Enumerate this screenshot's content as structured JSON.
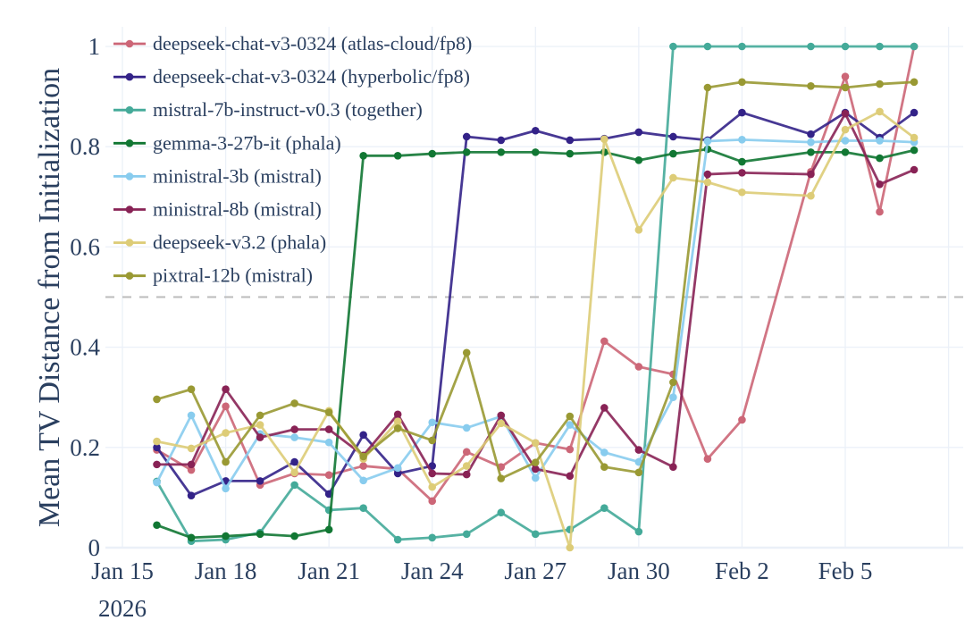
{
  "chart_data": {
    "type": "line",
    "title": "",
    "xlabel": "",
    "ylabel": "Mean TV Distance from Initialization",
    "ylim": [
      0,
      1.02
    ],
    "xlim": [
      "2026-01-15",
      "2026-02-08"
    ],
    "grid": true,
    "legend_position": "top-left",
    "x_ticks": [
      {
        "date": "2026-01-15",
        "label": "Jan 15",
        "sublabel": "2026"
      },
      {
        "date": "2026-01-18",
        "label": "Jan 18"
      },
      {
        "date": "2026-01-21",
        "label": "Jan 21"
      },
      {
        "date": "2026-01-24",
        "label": "Jan 24"
      },
      {
        "date": "2026-01-27",
        "label": "Jan 27"
      },
      {
        "date": "2026-01-30",
        "label": "Jan 30"
      },
      {
        "date": "2026-02-02",
        "label": "Feb 2"
      },
      {
        "date": "2026-02-05",
        "label": "Feb 5"
      },
      {
        "date": "2026-02-08",
        "label": ""
      }
    ],
    "y_ticks": [
      {
        "value": 0,
        "label": "0"
      },
      {
        "value": 0.2,
        "label": "0.2"
      },
      {
        "value": 0.4,
        "label": "0.4"
      },
      {
        "value": 0.6,
        "label": "0.6"
      },
      {
        "value": 0.8,
        "label": "0.8"
      },
      {
        "value": 1,
        "label": "1"
      }
    ],
    "reference_line": {
      "y": 0.5,
      "style": "dashed",
      "color": "#bbbbbb"
    },
    "x": [
      "2026-01-16",
      "2026-01-17",
      "2026-01-18",
      "2026-01-19",
      "2026-01-20",
      "2026-01-21",
      "2026-01-22",
      "2026-01-23",
      "2026-01-24",
      "2026-01-25",
      "2026-01-26",
      "2026-01-27",
      "2026-01-28",
      "2026-01-29",
      "2026-01-30",
      "2026-01-31",
      "2026-02-01",
      "2026-02-02",
      "2026-02-04",
      "2026-02-05",
      "2026-02-06",
      "2026-02-07"
    ],
    "series": [
      {
        "name": "deepseek-chat-v3-0324 (atlas-cloud/fp8)",
        "color": "#CC6677",
        "values": [
          0.195,
          0.155,
          0.282,
          0.125,
          0.148,
          0.145,
          0.163,
          0.157,
          0.093,
          0.191,
          0.161,
          0.209,
          0.196,
          0.412,
          0.361,
          0.346,
          0.177,
          0.255,
          0.75,
          0.94,
          0.67,
          1.0
        ]
      },
      {
        "name": "deepseek-chat-v3-0324 (hyperbolic/fp8)",
        "color": "#332288",
        "values": [
          0.2,
          0.104,
          0.133,
          0.133,
          0.171,
          0.107,
          0.225,
          0.148,
          0.163,
          0.82,
          0.813,
          0.832,
          0.813,
          0.816,
          0.829,
          0.82,
          0.813,
          0.868,
          0.825,
          0.868,
          0.818,
          0.868
        ]
      },
      {
        "name": "mistral-7b-instruct-v0.3 (together)",
        "color": "#44AA99",
        "values": [
          0.132,
          0.013,
          0.016,
          0.03,
          0.125,
          0.075,
          0.079,
          0.016,
          0.02,
          0.027,
          0.07,
          0.027,
          0.036,
          0.079,
          0.032,
          1.0,
          1.0,
          1.0,
          1.0,
          1.0,
          1.0,
          1.0
        ]
      },
      {
        "name": "gemma-3-27b-it (phala)",
        "color": "#117733",
        "values": [
          0.045,
          0.02,
          0.023,
          0.027,
          0.023,
          0.036,
          0.782,
          0.782,
          0.786,
          0.789,
          0.789,
          0.789,
          0.786,
          0.789,
          0.773,
          0.786,
          0.795,
          0.77,
          0.789,
          0.789,
          0.777,
          0.793
        ]
      },
      {
        "name": "ministral-3b (mistral)",
        "color": "#88CCEE",
        "values": [
          0.13,
          0.264,
          0.118,
          0.227,
          0.22,
          0.21,
          0.134,
          0.159,
          0.25,
          0.239,
          0.262,
          0.139,
          0.245,
          0.19,
          0.171,
          0.3,
          0.811,
          0.814,
          0.809,
          0.812,
          0.812,
          0.809
        ]
      },
      {
        "name": "ministral-8b (mistral)",
        "color": "#882255",
        "values": [
          0.166,
          0.166,
          0.316,
          0.22,
          0.236,
          0.236,
          0.184,
          0.266,
          0.148,
          0.146,
          0.264,
          0.157,
          0.143,
          0.279,
          0.195,
          0.161,
          0.745,
          0.748,
          0.745,
          0.866,
          0.725,
          0.754
        ]
      },
      {
        "name": "deepseek-v3.2 (phala)",
        "color": "#DDCC77",
        "values": [
          0.212,
          0.198,
          0.229,
          0.245,
          0.15,
          0.273,
          0.177,
          0.252,
          0.121,
          0.163,
          0.248,
          0.209,
          0.0,
          0.815,
          0.634,
          0.738,
          0.729,
          0.709,
          0.702,
          0.834,
          0.87,
          0.818
        ]
      },
      {
        "name": "pixtral-12b (mistral)",
        "color": "#999933",
        "values": [
          0.296,
          0.316,
          0.171,
          0.264,
          0.288,
          0.27,
          0.182,
          0.238,
          0.214,
          0.389,
          0.138,
          0.17,
          0.262,
          0.161,
          0.15,
          0.33,
          0.918,
          0.929,
          0.921,
          0.918,
          0.925,
          0.929
        ]
      }
    ]
  }
}
